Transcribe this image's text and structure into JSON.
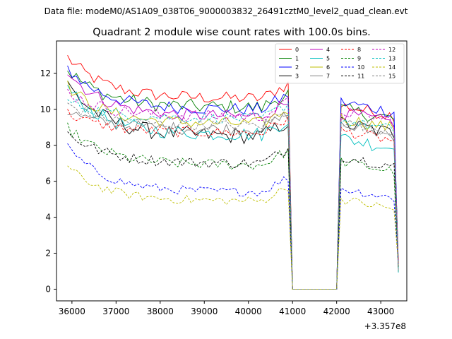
{
  "chart_data": {
    "type": "line",
    "suptitle": "Data file: modeM0/AS1A09_038T06_9000003832_26491cztM0_level2_quad_clean.evt",
    "title": "Quadrant 2 module wise count rates with 100.0s bins.",
    "xlabel": "",
    "ylabel": "",
    "x_offset_label": "+3.357e8",
    "xlim": [
      35650,
      43590
    ],
    "ylim": [
      -0.65,
      13.8
    ],
    "xticks": [
      36000,
      37000,
      38000,
      39000,
      40000,
      41000,
      42000,
      43000
    ],
    "yticks": [
      0,
      2,
      4,
      6,
      8,
      10,
      12
    ],
    "grid": false,
    "legend_position": "top-right",
    "segments": [
      {
        "start": 35900,
        "end": 40900,
        "step": 100
      },
      {
        "start": 41000,
        "end": 42000,
        "step": 100
      },
      {
        "start": 42100,
        "end": 43400,
        "step": 100
      }
    ],
    "series": [
      {
        "name": "0",
        "color": "#ff0000",
        "dash": "solid",
        "level": 10.6,
        "start": 12.9,
        "noise": 0.35,
        "late": 10.2
      },
      {
        "name": "1",
        "color": "#008000",
        "dash": "solid",
        "level": 10.1,
        "start": 12.2,
        "noise": 0.4,
        "late": 10.0
      },
      {
        "name": "2",
        "color": "#0000ff",
        "dash": "solid",
        "level": 10.0,
        "start": 12.3,
        "noise": 0.35,
        "late": 10.4
      },
      {
        "name": "3",
        "color": "#000000",
        "dash": "solid",
        "level": 8.5,
        "start": 11.4,
        "noise": 0.45,
        "late": 9.2
      },
      {
        "name": "4",
        "color": "#bf00bf",
        "dash": "solid",
        "level": 9.6,
        "start": 12.1,
        "noise": 0.35,
        "late": 9.8
      },
      {
        "name": "5",
        "color": "#00bfbf",
        "dash": "solid",
        "level": 8.6,
        "start": 11.2,
        "noise": 0.4,
        "late": 8.4
      },
      {
        "name": "6",
        "color": "#bfbf00",
        "dash": "solid",
        "level": 9.2,
        "start": 11.3,
        "noise": 0.35,
        "late": 9.5
      },
      {
        "name": "7",
        "color": "#808080",
        "dash": "solid",
        "level": 8.9,
        "start": 9.9,
        "noise": 0.35,
        "late": 9.1
      },
      {
        "name": "8",
        "color": "#ff0000",
        "dash": "dashed",
        "level": 8.7,
        "start": 9.8,
        "noise": 0.3,
        "late": 8.8
      },
      {
        "name": "9",
        "color": "#008000",
        "dash": "dashed",
        "level": 6.9,
        "start": 9.0,
        "noise": 0.3,
        "late": 7.1
      },
      {
        "name": "10",
        "color": "#0000ff",
        "dash": "dashed",
        "level": 5.4,
        "start": 7.9,
        "noise": 0.25,
        "late": 5.6
      },
      {
        "name": "11",
        "color": "#000000",
        "dash": "dashed",
        "level": 7.0,
        "start": 8.7,
        "noise": 0.3,
        "late": 7.4
      },
      {
        "name": "12",
        "color": "#bf00bf",
        "dash": "dashed",
        "level": 9.6,
        "start": 11.0,
        "noise": 0.35,
        "late": 9.9
      },
      {
        "name": "13",
        "color": "#00bfbf",
        "dash": "dashed",
        "level": 9.5,
        "start": 10.5,
        "noise": 0.3,
        "late": 9.4
      },
      {
        "name": "14",
        "color": "#bfbf00",
        "dash": "dashed",
        "level": 4.9,
        "start": 6.8,
        "noise": 0.25,
        "late": 5.0
      },
      {
        "name": "15",
        "color": "#808080",
        "dash": "dashed",
        "level": 9.1,
        "start": 10.3,
        "noise": 0.3,
        "late": 9.3
      }
    ]
  }
}
